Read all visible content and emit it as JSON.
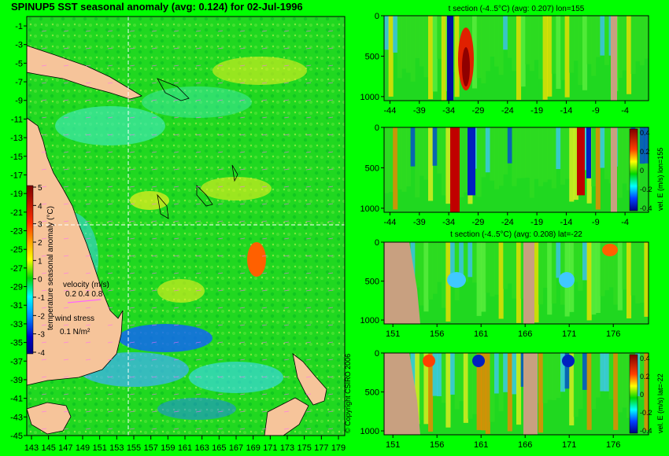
{
  "page": {
    "title": "SPINUP5 SST seasonal anomaly (avg: 0.124) for 02-Jul-1996",
    "copyright": "© Copyright CSIRO 2006"
  },
  "map": {
    "lat_ticks": [
      "-1",
      "-3",
      "-5",
      "-7",
      "-9",
      "-11",
      "-13",
      "-15",
      "-17",
      "-19",
      "-21",
      "-23",
      "-25",
      "-27",
      "-29",
      "-31",
      "-33",
      "-35",
      "-37",
      "-39",
      "-41",
      "-43",
      "-45"
    ],
    "lon_ticks": [
      "143",
      "145",
      "147",
      "149",
      "151",
      "153",
      "155",
      "157",
      "159",
      "161",
      "163",
      "165",
      "167",
      "169",
      "171",
      "173",
      "175",
      "177",
      "179"
    ],
    "colorbar": {
      "label": "temperature seasonal anomaly (°C)",
      "ticks": [
        "5",
        "4",
        "3",
        "2",
        "1",
        "0",
        "-1",
        "-2",
        "-3",
        "-4"
      ]
    },
    "velocity_label": "velocity (m/s)",
    "velocity_scale": "0.2 0.4 0.8",
    "wind_label": "wind stress",
    "wind_scale": "0.1 N/m²",
    "crosshair": {
      "lon": 155,
      "lat": -22
    },
    "colors": {
      "land": "#f6c49a",
      "ocean": "#10d818",
      "vector": "#ff66ff"
    }
  },
  "chart_data": [
    {
      "type": "heatmap",
      "title": "t section (-4..5°C) (avg: 0.207) lon=155",
      "x_ticks": [
        "-44",
        "-39",
        "-34",
        "-29",
        "-24",
        "-19",
        "-14",
        "-9",
        "-4"
      ],
      "y_ticks": [
        "0",
        "500",
        "1000"
      ],
      "xlim": [
        -45,
        0
      ],
      "ylim": [
        1050,
        0
      ]
    },
    {
      "type": "heatmap",
      "title": "",
      "x_ticks": [
        "-44",
        "-39",
        "-34",
        "-29",
        "-24",
        "-19",
        "-14",
        "-9",
        "-4"
      ],
      "y_ticks": [
        "0",
        "500",
        "1000"
      ],
      "xlim": [
        -45,
        0
      ],
      "ylim": [
        1050,
        0
      ],
      "colorbar": {
        "label": "vel. E (m/s) lon=155",
        "ticks": [
          "0.4",
          "0.2",
          "0",
          "-0.2",
          "-0.4"
        ]
      }
    },
    {
      "type": "heatmap",
      "title": "t section (-4..5°C) (avg: 0.208) lat=-22",
      "x_ticks": [
        "151",
        "156",
        "161",
        "166",
        "171",
        "176"
      ],
      "y_ticks": [
        "0",
        "500",
        "1000"
      ],
      "xlim": [
        150,
        180
      ],
      "ylim": [
        1050,
        0
      ]
    },
    {
      "type": "heatmap",
      "title": "",
      "x_ticks": [
        "151",
        "156",
        "161",
        "166",
        "171",
        "176"
      ],
      "y_ticks": [
        "0",
        "500",
        "1000"
      ],
      "xlim": [
        150,
        180
      ],
      "ylim": [
        1050,
        0
      ],
      "colorbar": {
        "label": "vel. E (m/s) lat=-22",
        "ticks": [
          "0.4",
          "0.2",
          "0",
          "-0.2",
          "-0.4"
        ]
      }
    }
  ]
}
